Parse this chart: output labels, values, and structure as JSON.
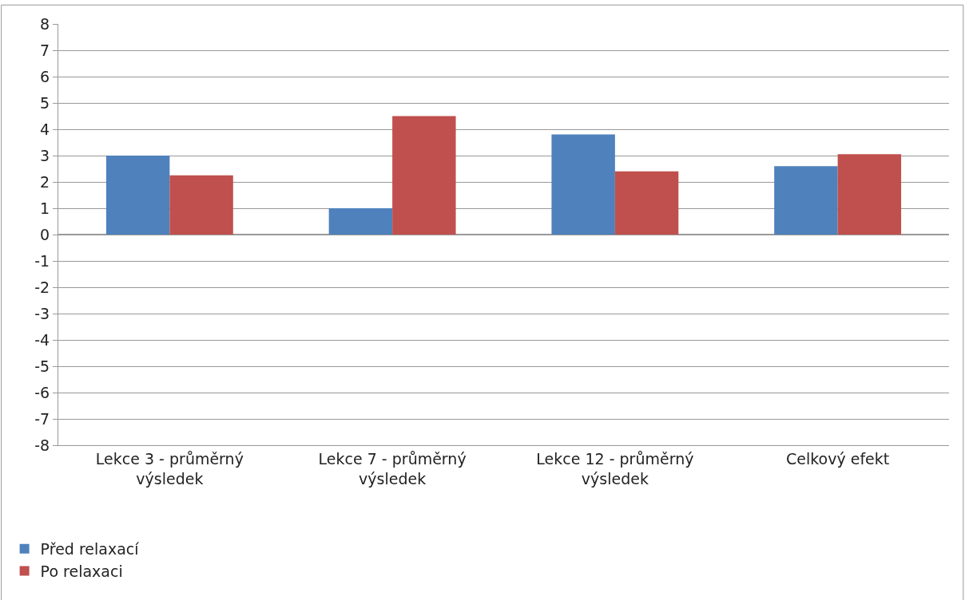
{
  "chart_data": {
    "type": "bar",
    "categories": [
      "Lekce 3 - průměrný výsledek",
      "Lekce 7 - průměrný výsledek",
      "Lekce 12 - průměrný výsledek",
      "Celkový efekt"
    ],
    "series": [
      {
        "name": "Před relaxací",
        "color": "#4f81bd",
        "values": [
          3.0,
          1.0,
          3.8,
          2.6
        ]
      },
      {
        "name": "Po relaxaci",
        "color": "#c0504d",
        "values": [
          2.25,
          4.5,
          2.4,
          3.05
        ]
      }
    ],
    "ylim": [
      -8,
      8
    ],
    "yticks": [
      -8,
      -7,
      -6,
      -5,
      -4,
      -3,
      -2,
      -1,
      0,
      1,
      2,
      3,
      4,
      5,
      6,
      7,
      8
    ],
    "grid": "y",
    "legend": "bottom left"
  }
}
